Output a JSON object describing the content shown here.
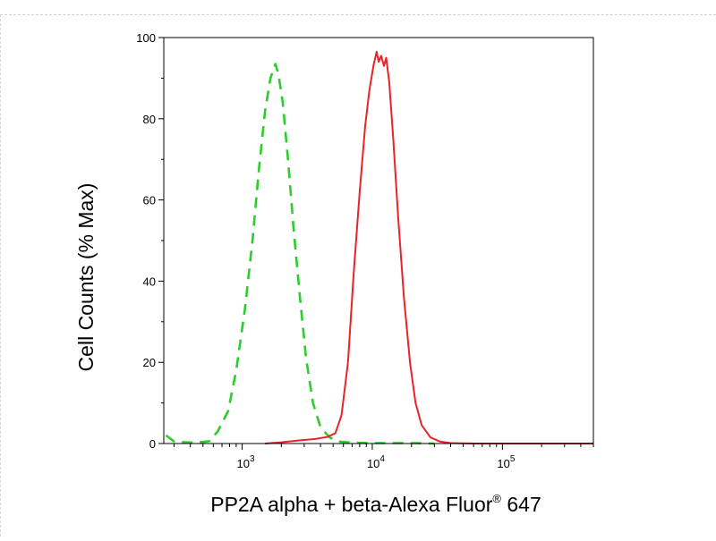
{
  "chart_data": {
    "type": "line",
    "title": "",
    "xlabel": "PP2A alpha + beta-Alexa Fluor",
    "xlabel_sup": "®",
    "xlabel_suffix": " 647",
    "ylabel": "Cell Counts (% Max)",
    "x_scale": "log",
    "xlim": [
      250,
      500000
    ],
    "ylim": [
      0,
      100
    ],
    "grid": false,
    "legend": "none",
    "x_ticks": [
      {
        "value": 1000,
        "base": "10",
        "exp": "3"
      },
      {
        "value": 10000,
        "base": "10",
        "exp": "4"
      },
      {
        "value": 100000,
        "base": "10",
        "exp": "5"
      }
    ],
    "y_ticks": [
      {
        "value": 0,
        "label": "0"
      },
      {
        "value": 20,
        "label": "20"
      },
      {
        "value": 40,
        "label": "40"
      },
      {
        "value": 60,
        "label": "60"
      },
      {
        "value": 80,
        "label": "80"
      },
      {
        "value": 100,
        "label": "100"
      }
    ],
    "series": [
      {
        "color": "#2ecc2e",
        "style": "dashed",
        "points": [
          [
            260,
            2
          ],
          [
            300,
            0.5
          ],
          [
            360,
            0.3
          ],
          [
            450,
            0.2
          ],
          [
            560,
            0.6
          ],
          [
            650,
            3
          ],
          [
            780,
            8
          ],
          [
            900,
            18
          ],
          [
            1050,
            33
          ],
          [
            1200,
            50
          ],
          [
            1350,
            68
          ],
          [
            1500,
            82
          ],
          [
            1650,
            90
          ],
          [
            1800,
            93.5
          ],
          [
            1900,
            91
          ],
          [
            2050,
            84
          ],
          [
            2250,
            70
          ],
          [
            2500,
            52
          ],
          [
            2800,
            35
          ],
          [
            3100,
            21
          ],
          [
            3500,
            10
          ],
          [
            4000,
            4
          ],
          [
            4700,
            1.5
          ],
          [
            5500,
            0.5
          ],
          [
            7000,
            0.2
          ],
          [
            10000,
            0.1
          ],
          [
            20000,
            0.1
          ],
          [
            30000,
            0
          ]
        ]
      },
      {
        "color": "#e8232a",
        "style": "solid",
        "points": [
          [
            1500,
            0
          ],
          [
            2000,
            0.3
          ],
          [
            2800,
            0.8
          ],
          [
            3600,
            1.1
          ],
          [
            4500,
            1.6
          ],
          [
            5200,
            2.5
          ],
          [
            5800,
            7
          ],
          [
            6500,
            20
          ],
          [
            7200,
            42
          ],
          [
            8000,
            62
          ],
          [
            8800,
            78
          ],
          [
            9500,
            87
          ],
          [
            10200,
            93
          ],
          [
            10800,
            96.5
          ],
          [
            11200,
            94
          ],
          [
            11700,
            95.5
          ],
          [
            12300,
            93
          ],
          [
            12800,
            95
          ],
          [
            13500,
            89
          ],
          [
            14500,
            75
          ],
          [
            15800,
            56
          ],
          [
            17500,
            36
          ],
          [
            19500,
            20
          ],
          [
            21500,
            10
          ],
          [
            24000,
            4.5
          ],
          [
            28000,
            1.5
          ],
          [
            33000,
            0.5
          ],
          [
            40000,
            0.1
          ],
          [
            60000,
            0
          ],
          [
            500000,
            0
          ]
        ]
      }
    ]
  }
}
